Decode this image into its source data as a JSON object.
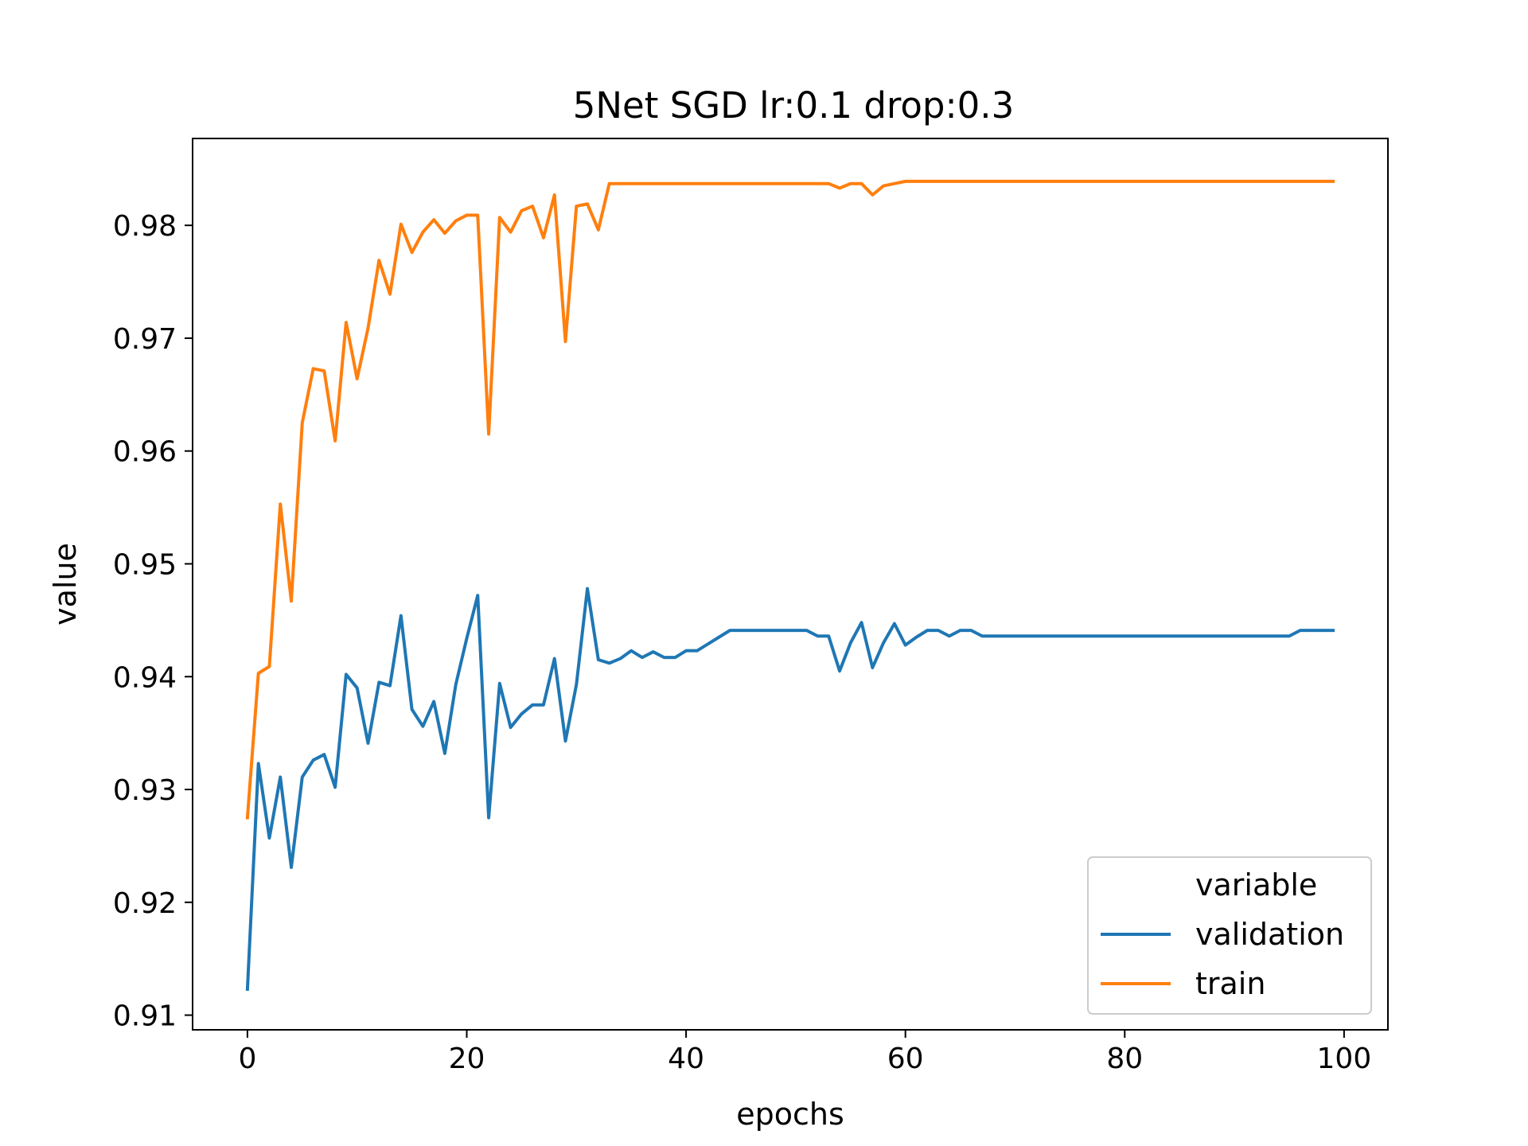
{
  "chart_data": {
    "type": "line",
    "title": "5Net SGD lr:0.1 drop:0.3",
    "xlabel": "epochs",
    "ylabel": "value",
    "xlim": [
      -5,
      104
    ],
    "ylim": [
      0.9087,
      0.9877
    ],
    "xticks": [
      0,
      20,
      40,
      60,
      80,
      100
    ],
    "xtick_labels": [
      "0",
      "20",
      "40",
      "60",
      "80",
      "100"
    ],
    "yticks": [
      0.91,
      0.92,
      0.93,
      0.94,
      0.95,
      0.96,
      0.97,
      0.98
    ],
    "ytick_labels": [
      "0.91",
      "0.92",
      "0.93",
      "0.94",
      "0.95",
      "0.96",
      "0.97",
      "0.98"
    ],
    "grid": false,
    "legend": {
      "title": "variable",
      "position": "lower-right"
    },
    "series": [
      {
        "name": "validation",
        "color": "#1f77b4",
        "values": [
          0.9123,
          0.9323,
          0.9257,
          0.9311,
          0.9231,
          0.9311,
          0.9326,
          0.9331,
          0.9302,
          0.9402,
          0.939,
          0.9341,
          0.9395,
          0.9392,
          0.9454,
          0.9371,
          0.9356,
          0.9378,
          0.9332,
          0.9393,
          0.9434,
          0.9472,
          0.9275,
          0.9394,
          0.9355,
          0.9367,
          0.9375,
          0.9375,
          0.9416,
          0.9343,
          0.9393,
          0.9478,
          0.9415,
          0.9412,
          0.9416,
          0.9423,
          0.9417,
          0.9422,
          0.9417,
          0.9417,
          0.9423,
          0.9423,
          0.9429,
          0.9435,
          0.9441,
          0.9441,
          0.9441,
          0.9441,
          0.9441,
          0.9441,
          0.9441,
          0.9441,
          0.9436,
          0.9436,
          0.9405,
          0.943,
          0.9448,
          0.9408,
          0.943,
          0.9447,
          0.9428,
          0.9435,
          0.9441,
          0.9441,
          0.9436,
          0.9441,
          0.9441,
          0.9436,
          0.9436,
          0.9436,
          0.9436,
          0.9436,
          0.9436,
          0.9436,
          0.9436,
          0.9436,
          0.9436,
          0.9436,
          0.9436,
          0.9436,
          0.9436,
          0.9436,
          0.9436,
          0.9436,
          0.9436,
          0.9436,
          0.9436,
          0.9436,
          0.9436,
          0.9436,
          0.9436,
          0.9436,
          0.9436,
          0.9436,
          0.9436,
          0.9436,
          0.9441,
          0.9441,
          0.9441,
          0.9441
        ]
      },
      {
        "name": "train",
        "color": "#ff7f0e",
        "values": [
          0.9275,
          0.9403,
          0.9409,
          0.9553,
          0.9467,
          0.9625,
          0.9673,
          0.9671,
          0.9609,
          0.9714,
          0.9664,
          0.9709,
          0.9769,
          0.9739,
          0.9801,
          0.9776,
          0.9794,
          0.9805,
          0.9793,
          0.9804,
          0.9809,
          0.9809,
          0.9615,
          0.9807,
          0.9794,
          0.9813,
          0.9817,
          0.9789,
          0.9827,
          0.9697,
          0.9817,
          0.9819,
          0.9796,
          0.9837,
          0.9837,
          0.9837,
          0.9837,
          0.9837,
          0.9837,
          0.9837,
          0.9837,
          0.9837,
          0.9837,
          0.9837,
          0.9837,
          0.9837,
          0.9837,
          0.9837,
          0.9837,
          0.9837,
          0.9837,
          0.9837,
          0.9837,
          0.9837,
          0.9833,
          0.9837,
          0.9837,
          0.9827,
          0.9835,
          0.9837,
          0.9839,
          0.9839,
          0.9839,
          0.9839,
          0.9839,
          0.9839,
          0.9839,
          0.9839,
          0.9839,
          0.9839,
          0.9839,
          0.9839,
          0.9839,
          0.9839,
          0.9839,
          0.9839,
          0.9839,
          0.9839,
          0.9839,
          0.9839,
          0.9839,
          0.9839,
          0.9839,
          0.9839,
          0.9839,
          0.9839,
          0.9839,
          0.9839,
          0.9839,
          0.9839,
          0.9839,
          0.9839,
          0.9839,
          0.9839,
          0.9839,
          0.9839,
          0.9839,
          0.9839,
          0.9839,
          0.9839
        ]
      }
    ]
  }
}
